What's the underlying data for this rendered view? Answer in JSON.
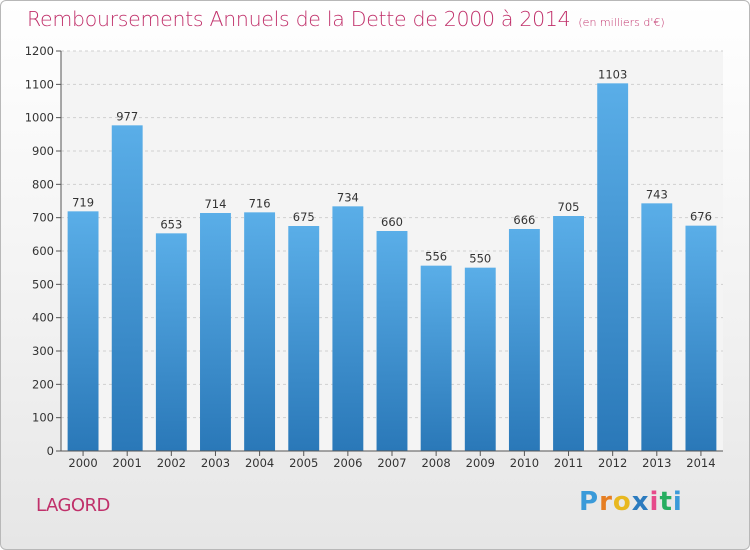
{
  "header": {
    "title": "Remboursements Annuels de la Dette de 2000 à 2014",
    "unit": "(en milliers d'€)"
  },
  "footer": {
    "commune": "LAGORD",
    "logo_letters": [
      "P",
      "r",
      "o",
      "x",
      "i",
      "t",
      "i"
    ],
    "logo_colors": [
      "#3a9ad9",
      "#e67e22",
      "#e8b820",
      "#2b7bbf",
      "#e64a8a",
      "#27ae60",
      "#3a9ad9"
    ]
  },
  "chart_data": {
    "type": "bar",
    "title": "Remboursements Annuels de la Dette de 2000 à 2014",
    "ylabel": "(en milliers d'€)",
    "xlabel": "",
    "categories": [
      "2000",
      "2001",
      "2002",
      "2003",
      "2004",
      "2005",
      "2006",
      "2007",
      "2008",
      "2009",
      "2010",
      "2011",
      "2012",
      "2013",
      "2014"
    ],
    "values": [
      719,
      977,
      653,
      714,
      716,
      675,
      734,
      660,
      556,
      550,
      666,
      705,
      1103,
      743,
      676
    ],
    "ylim": [
      0,
      1200
    ],
    "yticks": [
      0,
      100,
      200,
      300,
      400,
      500,
      600,
      700,
      800,
      900,
      1000,
      1100,
      1200
    ],
    "grid": true,
    "bar_color_top": "#5aaee8",
    "bar_color_bottom": "#2a78b8"
  }
}
